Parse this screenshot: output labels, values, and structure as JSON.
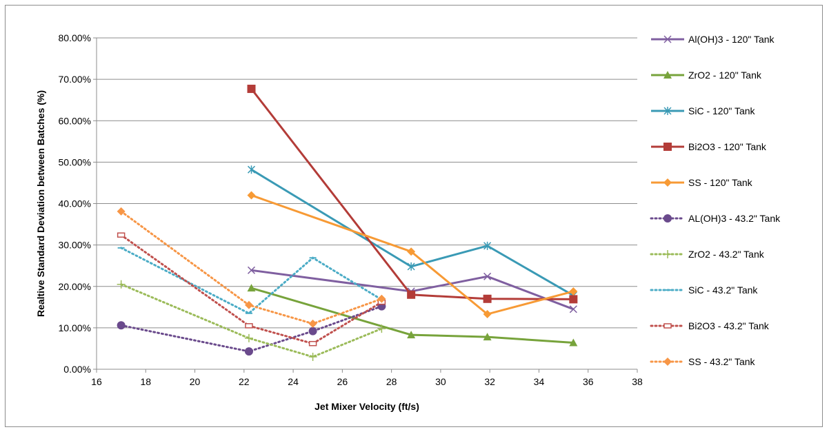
{
  "chart_data": {
    "type": "line",
    "title": "",
    "xlabel": "Jet Mixer Velocity (ft/s)",
    "ylabel": "Realtive Standard Deviation between Batches (%)",
    "xlim": [
      16,
      38
    ],
    "ylim": [
      0,
      0.8
    ],
    "x_ticks": [
      "16",
      "18",
      "20",
      "22",
      "24",
      "26",
      "28",
      "30",
      "32",
      "34",
      "36",
      "38"
    ],
    "y_ticks": [
      "0.00%",
      "10.00%",
      "20.00%",
      "30.00%",
      "40.00%",
      "50.00%",
      "60.00%",
      "70.00%",
      "80.00%"
    ],
    "grid": "horizontal",
    "legend_position": "right",
    "series": [
      {
        "name": "Al(OH)3 - 120\" Tank",
        "color": "#7f5fa0",
        "marker": "x",
        "dash": "solid",
        "x": [
          22.3,
          28.8,
          31.9,
          35.4
        ],
        "y": [
          0.239,
          0.188,
          0.224,
          0.145
        ]
      },
      {
        "name": "ZrO2 - 120\" Tank",
        "color": "#77a33b",
        "marker": "triangle",
        "dash": "solid",
        "x": [
          22.3,
          28.8,
          31.9,
          35.4
        ],
        "y": [
          0.196,
          0.083,
          0.078,
          0.064
        ]
      },
      {
        "name": "SiC - 120\" Tank",
        "color": "#3a9ab5",
        "marker": "star",
        "dash": "solid",
        "x": [
          22.3,
          28.8,
          31.9,
          35.4
        ],
        "y": [
          0.482,
          0.248,
          0.298,
          0.178
        ]
      },
      {
        "name": "Bi2O3 - 120\" Tank",
        "color": "#b33c38",
        "marker": "square",
        "dash": "solid",
        "x": [
          22.3,
          28.8,
          31.9,
          35.4
        ],
        "y": [
          0.677,
          0.18,
          0.17,
          0.169
        ]
      },
      {
        "name": "SS - 120\" Tank",
        "color": "#f79a35",
        "marker": "diamond",
        "dash": "solid",
        "x": [
          22.3,
          28.8,
          31.9,
          35.4
        ],
        "y": [
          0.42,
          0.284,
          0.133,
          0.188
        ]
      },
      {
        "name": "AL(OH)3 - 43.2\" Tank",
        "color": "#6a4a8c",
        "marker": "circle",
        "dash": "dotted",
        "x": [
          17.0,
          22.2,
          24.8,
          27.6
        ],
        "y": [
          0.106,
          0.043,
          0.092,
          0.152
        ]
      },
      {
        "name": "ZrO2 - 43.2\" Tank",
        "color": "#9bbb59",
        "marker": "plus",
        "dash": "dotted",
        "x": [
          17.0,
          22.2,
          24.8,
          27.6
        ],
        "y": [
          0.205,
          0.075,
          0.03,
          0.098
        ]
      },
      {
        "name": "SiC - 43.2\" Tank",
        "color": "#4bacc6",
        "marker": "dash",
        "dash": "dotted",
        "x": [
          17.0,
          22.2,
          24.8,
          27.6
        ],
        "y": [
          0.293,
          0.135,
          0.269,
          0.168
        ]
      },
      {
        "name": "Bi2O3 - 43.2\" Tank",
        "color": "#c0504d",
        "marker": "open-rect",
        "dash": "dotted",
        "x": [
          17.0,
          22.2,
          24.8,
          27.6
        ],
        "y": [
          0.324,
          0.105,
          0.062,
          0.162
        ]
      },
      {
        "name": "SS - 43.2\" Tank",
        "color": "#f79646",
        "marker": "diamond",
        "dash": "dotted",
        "x": [
          17.0,
          22.2,
          24.8,
          27.6
        ],
        "y": [
          0.381,
          0.155,
          0.11,
          0.17
        ]
      }
    ]
  }
}
